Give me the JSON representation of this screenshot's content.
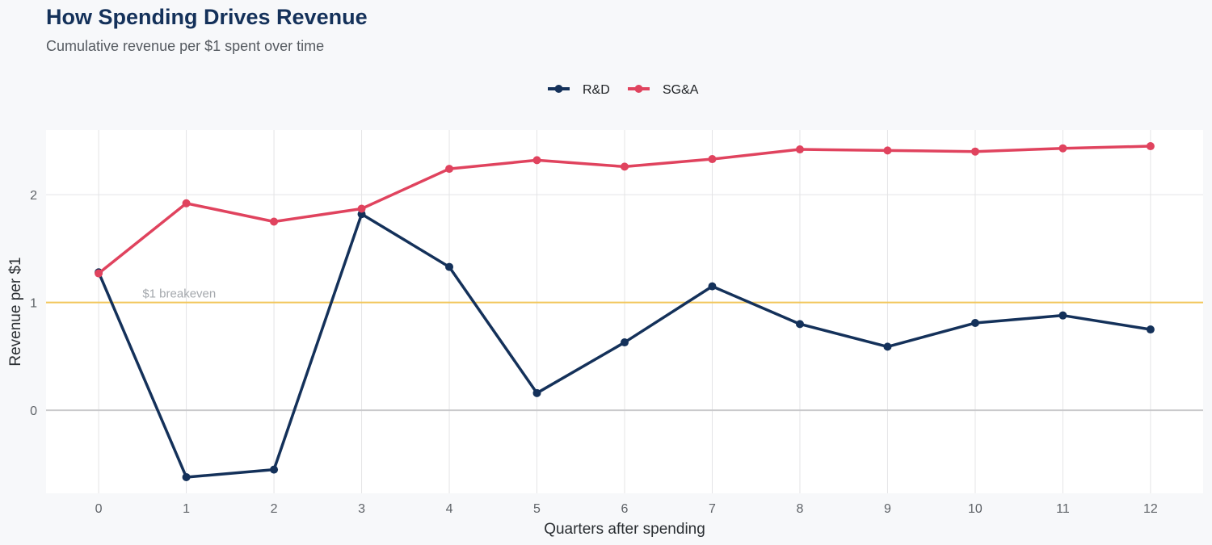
{
  "chart_data": {
    "type": "line",
    "title": "How Spending Drives Revenue",
    "subtitle": "Cumulative revenue per $1 spent over time",
    "xlabel": "Quarters after spending",
    "ylabel": "Revenue per $1",
    "x": [
      0,
      1,
      2,
      3,
      4,
      5,
      6,
      7,
      8,
      9,
      10,
      11,
      12
    ],
    "x_tick_labels": [
      "0",
      "1",
      "2",
      "3",
      "4",
      "5",
      "6",
      "7",
      "8",
      "9",
      "10",
      "11",
      "12"
    ],
    "y_ticks": [
      0,
      1,
      2
    ],
    "y_tick_labels": [
      "0",
      "1",
      "2"
    ],
    "xlim": [
      -0.6,
      12.6
    ],
    "ylim": [
      -0.77,
      2.6
    ],
    "grid": true,
    "legend_position": "top-center",
    "series": [
      {
        "name": "R&D",
        "color": "#14315a",
        "values": [
          1.28,
          -0.62,
          -0.55,
          1.82,
          1.33,
          0.16,
          0.63,
          1.15,
          0.8,
          0.59,
          0.81,
          0.88,
          0.75
        ]
      },
      {
        "name": "SG&A",
        "color": "#e0435e",
        "values": [
          1.27,
          1.92,
          1.75,
          1.87,
          2.24,
          2.32,
          2.26,
          2.33,
          2.42,
          2.41,
          2.4,
          2.43,
          2.45
        ]
      }
    ],
    "reference_lines": [
      {
        "y": 1,
        "label": "$1 breakeven",
        "color": "#f2c75c"
      }
    ],
    "zero_line_color": "#c9c9cc"
  }
}
